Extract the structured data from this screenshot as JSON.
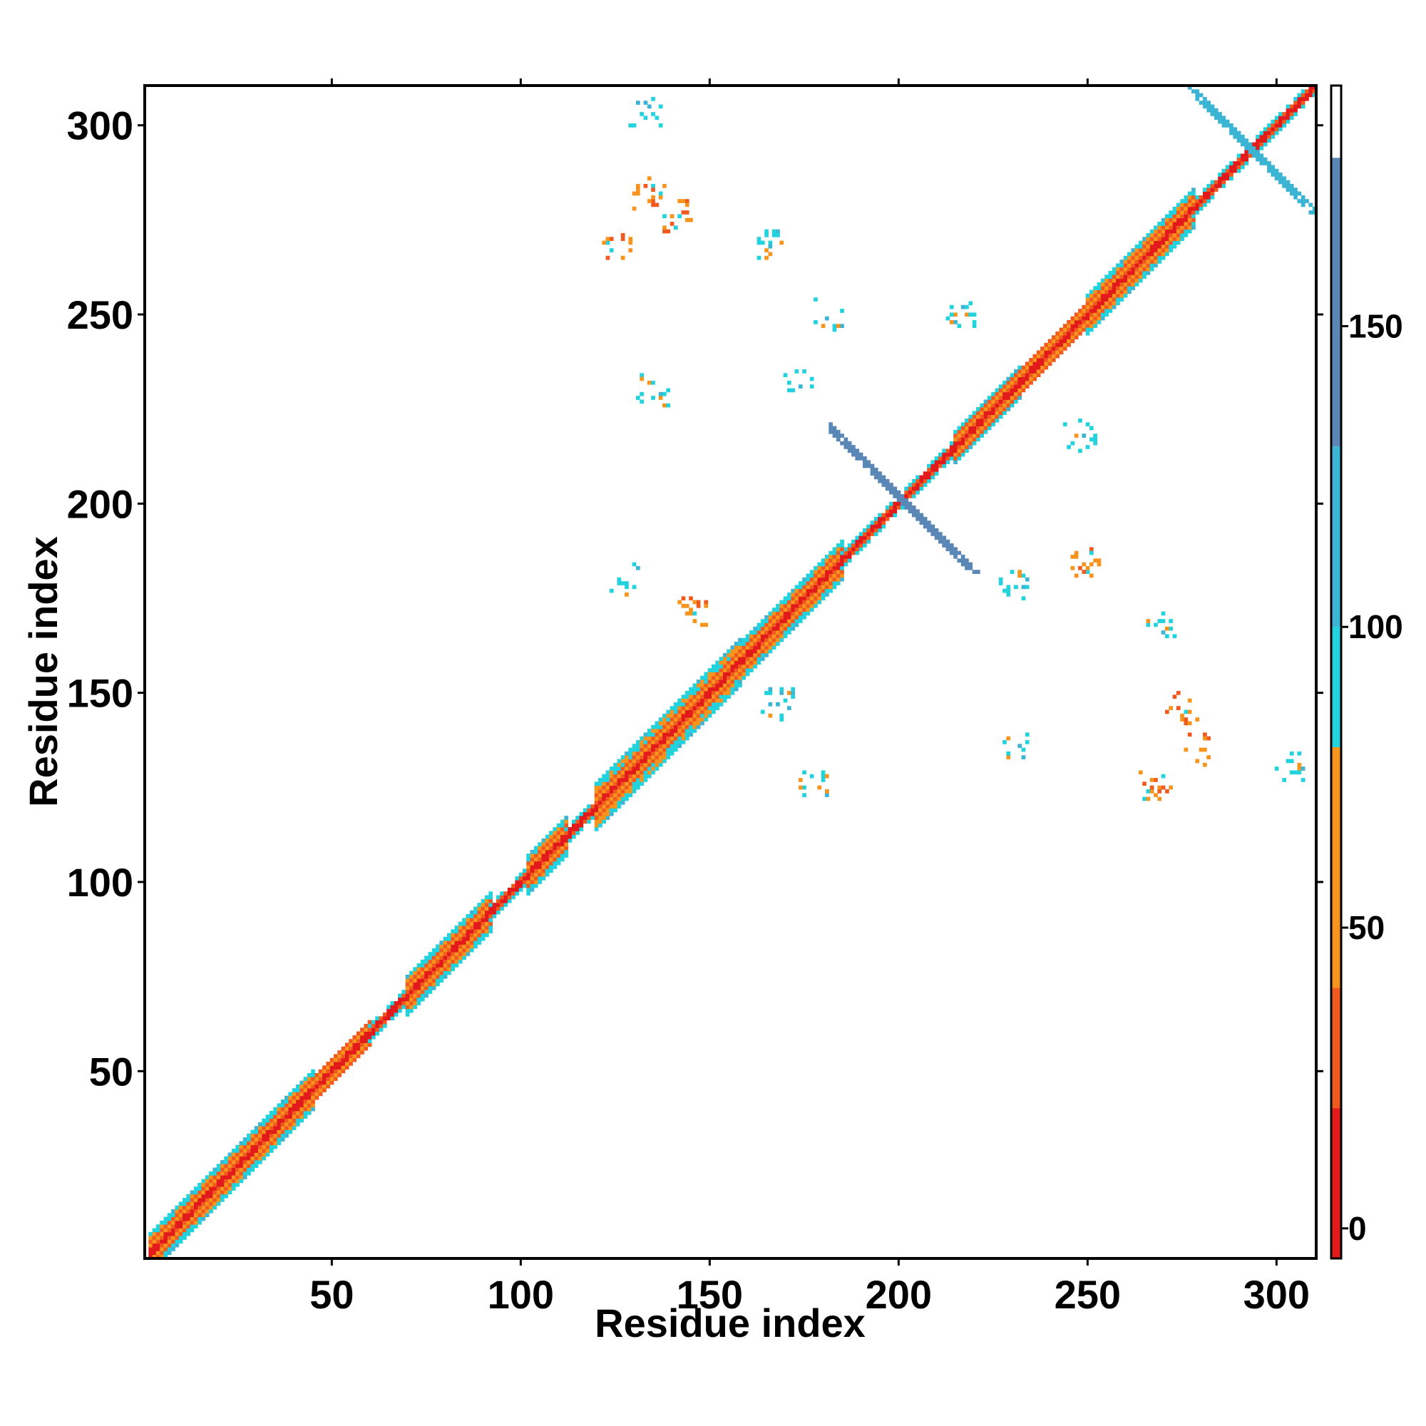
{
  "chart_data": {
    "type": "heatmap",
    "title": "",
    "xlabel": "Residue index",
    "ylabel": "Residue index",
    "xlim": [
      1,
      310
    ],
    "ylim": [
      1,
      310
    ],
    "x_ticks": [
      50,
      100,
      150,
      200,
      250,
      300
    ],
    "x_tick_labels": [
      "50",
      "100",
      "150",
      "200",
      "250",
      "300"
    ],
    "y_ticks": [
      50,
      100,
      150,
      200,
      250,
      300
    ],
    "y_tick_labels": [
      "50",
      "100",
      "150",
      "200",
      "250",
      "300"
    ],
    "grid": false,
    "legend": "colorbar right",
    "colorbar": {
      "range": [
        -5,
        190
      ],
      "ticks": [
        0,
        50,
        100,
        150
      ],
      "tick_labels": [
        "0",
        "50",
        "100",
        "150"
      ],
      "bands": [
        {
          "from": -5,
          "to": 20,
          "color": "#e31a1c"
        },
        {
          "from": 20,
          "to": 40,
          "color": "#f05a1e"
        },
        {
          "from": 40,
          "to": 80,
          "color": "#f7941d"
        },
        {
          "from": 80,
          "to": 100,
          "color": "#22d3dd"
        },
        {
          "from": 100,
          "to": 130,
          "color": "#3cb4d4"
        },
        {
          "from": 130,
          "to": 178,
          "color": "#5b87b7"
        },
        {
          "from": 178,
          "to": 190,
          "color": "#ffffff"
        }
      ]
    },
    "colors": {
      "red": "#e31a1c",
      "dark_orange": "#f05a1e",
      "orange": "#f7941d",
      "cyan": "#22d3dd",
      "light_blue": "#3cb4d4",
      "steel_blue": "#5b87b7"
    },
    "diagonal_segments": [
      {
        "range": [
          2,
          45
        ],
        "half_width": 5,
        "type": "helix"
      },
      {
        "range": [
          45,
          60
        ],
        "half_width": 3,
        "type": "helix"
      },
      {
        "range": [
          60,
          70
        ],
        "half_width": 2,
        "type": "loop"
      },
      {
        "range": [
          70,
          92
        ],
        "half_width": 5,
        "type": "helix"
      },
      {
        "range": [
          92,
          102
        ],
        "half_width": 2,
        "type": "loop"
      },
      {
        "range": [
          102,
          112
        ],
        "half_width": 5,
        "type": "helix"
      },
      {
        "range": [
          112,
          120
        ],
        "half_width": 2,
        "type": "loop"
      },
      {
        "range": [
          120,
          158
        ],
        "half_width": 6,
        "type": "helix"
      },
      {
        "range": [
          158,
          185
        ],
        "half_width": 5,
        "type": "helix"
      },
      {
        "range": [
          185,
          215
        ],
        "half_width": 2,
        "type": "loop"
      },
      {
        "range": [
          215,
          232
        ],
        "half_width": 4,
        "type": "helix"
      },
      {
        "range": [
          232,
          250
        ],
        "half_width": 3,
        "type": "helix"
      },
      {
        "range": [
          250,
          278
        ],
        "half_width": 5,
        "type": "helix"
      },
      {
        "range": [
          278,
          310
        ],
        "half_width": 2,
        "type": "loop"
      }
    ],
    "anti_diagonal_contacts": [
      {
        "i_range": [
          182,
          215
        ],
        "i_plus_j": 402,
        "color": "steel_blue"
      },
      {
        "i_range": [
          277,
          304
        ],
        "i_plus_j": 587,
        "color": "light_blue"
      }
    ],
    "contact_clusters": [
      {
        "i": 133,
        "j": 303,
        "color": "cyan"
      },
      {
        "i": 134,
        "j": 282,
        "color": "orange"
      },
      {
        "i": 142,
        "j": 276,
        "color": "orange"
      },
      {
        "i": 126,
        "j": 267,
        "color": "orange"
      },
      {
        "i": 166,
        "j": 269,
        "color": "cyan"
      },
      {
        "i": 181,
        "j": 250,
        "color": "cyan"
      },
      {
        "i": 174,
        "j": 231,
        "color": "cyan"
      },
      {
        "i": 135,
        "j": 230,
        "color": "cyan"
      },
      {
        "i": 216,
        "j": 250,
        "color": "cyan"
      },
      {
        "i": 248,
        "j": 218,
        "color": "cyan"
      },
      {
        "i": 250,
        "j": 184,
        "color": "orange"
      },
      {
        "i": 230,
        "j": 178,
        "color": "cyan"
      },
      {
        "i": 127,
        "j": 180,
        "color": "cyan"
      },
      {
        "i": 145,
        "j": 172,
        "color": "orange"
      },
      {
        "i": 168,
        "j": 147,
        "color": "cyan"
      },
      {
        "i": 177,
        "j": 127,
        "color": "cyan"
      },
      {
        "i": 269,
        "j": 168,
        "color": "cyan"
      },
      {
        "i": 275,
        "j": 146,
        "color": "orange"
      },
      {
        "i": 280,
        "j": 135,
        "color": "orange"
      },
      {
        "i": 268,
        "j": 125,
        "color": "orange"
      },
      {
        "i": 304,
        "j": 130,
        "color": "cyan"
      },
      {
        "i": 231,
        "j": 136,
        "color": "cyan"
      }
    ]
  }
}
